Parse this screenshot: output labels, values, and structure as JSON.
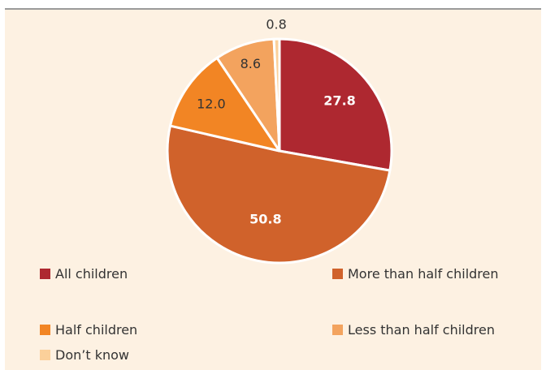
{
  "chart_data": {
    "type": "pie",
    "categories": [
      "All children",
      "More than half children",
      "Half children",
      "Less than half children",
      "Don’t know"
    ],
    "values": [
      27.8,
      50.8,
      12.0,
      8.6,
      0.8
    ],
    "value_labels": [
      "27.8",
      "50.8",
      "12.0",
      "8.6",
      "0.8"
    ],
    "colors": [
      "#ae2830",
      "#d0622b",
      "#f28524",
      "#f3a35e",
      "#fbd09a"
    ],
    "start_angle_deg": 0,
    "direction": "clockwise",
    "legend_position": "bottom"
  }
}
